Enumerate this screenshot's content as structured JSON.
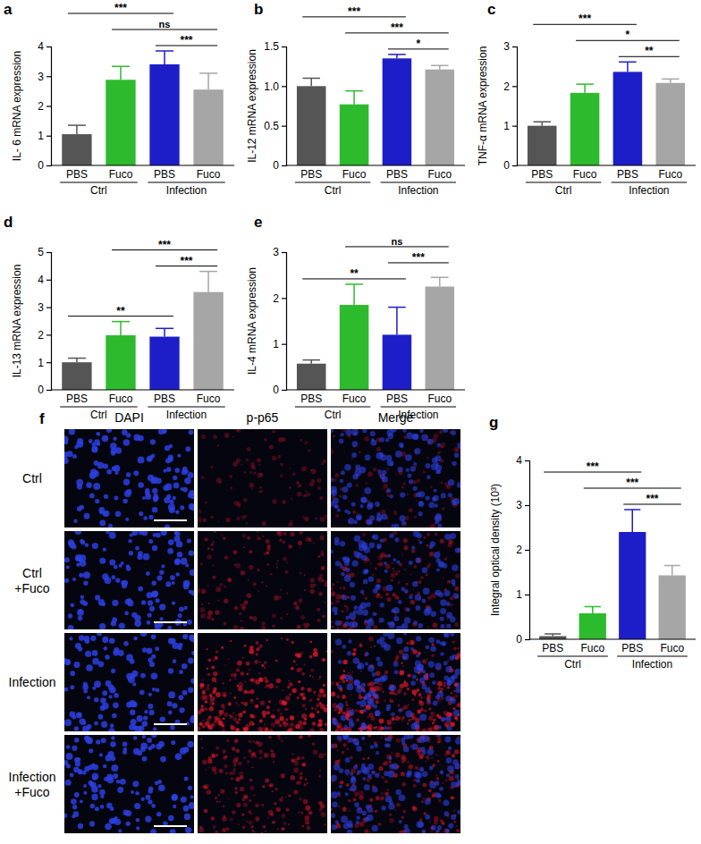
{
  "chart_data": [
    {
      "type": "bar",
      "panel_label": "a",
      "y_label": "IL- 6 mRNA expression",
      "categories": [
        "PBS",
        "Fuco",
        "PBS",
        "Fuco"
      ],
      "groups": [
        {
          "name": "Ctrl",
          "span": [
            0,
            1
          ]
        },
        {
          "name": "Infection",
          "span": [
            2,
            3
          ]
        }
      ],
      "values": [
        1.05,
        2.88,
        3.4,
        2.55
      ],
      "errors": [
        0.3,
        0.45,
        0.45,
        0.55
      ],
      "colors": [
        "#555555",
        "#2dbb2d",
        "#1e1ec8",
        "#a6a6a6"
      ],
      "ylim": [
        0,
        4
      ],
      "yticks": [
        0,
        1,
        2,
        3,
        4
      ],
      "annotations": [
        {
          "bars": [
            2,
            3
          ],
          "text": "***"
        },
        {
          "bars": [
            1,
            3
          ],
          "text": "ns"
        },
        {
          "bars": [
            0,
            2
          ],
          "text": "***"
        }
      ]
    },
    {
      "type": "bar",
      "panel_label": "b",
      "y_label": "IL-12 mRNA expression",
      "categories": [
        "PBS",
        "Fuco",
        "PBS",
        "Fuco"
      ],
      "groups": [
        {
          "name": "Ctrl",
          "span": [
            0,
            1
          ]
        },
        {
          "name": "Infection",
          "span": [
            2,
            3
          ]
        }
      ],
      "values": [
        1.0,
        0.77,
        1.35,
        1.21
      ],
      "errors": [
        0.1,
        0.17,
        0.05,
        0.05
      ],
      "colors": [
        "#555555",
        "#2dbb2d",
        "#1e1ec8",
        "#a6a6a6"
      ],
      "ylim": [
        0,
        1.5
      ],
      "yticks": [
        0,
        0.5,
        {
          "value": 1,
          "label": "1.0"
        },
        1.5
      ],
      "annotations": [
        {
          "bars": [
            2,
            3
          ],
          "text": "*"
        },
        {
          "bars": [
            1,
            3
          ],
          "text": "***"
        },
        {
          "bars": [
            0,
            2
          ],
          "text": "***"
        }
      ]
    },
    {
      "type": "bar",
      "panel_label": "c",
      "y_label": "TNF-α mRNA expression",
      "categories": [
        "PBS",
        "Fuco",
        "PBS",
        "Fuco"
      ],
      "groups": [
        {
          "name": "Ctrl",
          "span": [
            0,
            1
          ]
        },
        {
          "name": "Infection",
          "span": [
            2,
            3
          ]
        }
      ],
      "values": [
        1.0,
        1.83,
        2.36,
        2.08
      ],
      "errors": [
        0.1,
        0.22,
        0.25,
        0.1
      ],
      "colors": [
        "#555555",
        "#2dbb2d",
        "#1e1ec8",
        "#a6a6a6"
      ],
      "ylim": [
        0,
        3
      ],
      "yticks": [
        0,
        1,
        2,
        3
      ],
      "annotations": [
        {
          "bars": [
            2,
            3
          ],
          "text": "**"
        },
        {
          "bars": [
            1,
            3
          ],
          "text": "*"
        },
        {
          "bars": [
            0,
            2
          ],
          "text": "***"
        }
      ]
    },
    {
      "type": "bar",
      "panel_label": "d",
      "y_label": "IL-13 mRNA expression",
      "categories": [
        "PBS",
        "Fuco",
        "PBS",
        "Fuco"
      ],
      "groups": [
        {
          "name": "Ctrl",
          "span": [
            0,
            1
          ]
        },
        {
          "name": "Infection",
          "span": [
            2,
            3
          ]
        }
      ],
      "values": [
        1.0,
        1.98,
        1.93,
        3.55
      ],
      "errors": [
        0.15,
        0.5,
        0.3,
        0.75
      ],
      "colors": [
        "#555555",
        "#2dbb2d",
        "#1e1ec8",
        "#a6a6a6"
      ],
      "ylim": [
        0,
        5
      ],
      "yticks": [
        0,
        1,
        2,
        3,
        4,
        5
      ],
      "annotations": [
        {
          "bars": [
            0,
            2
          ],
          "text": "**"
        },
        {
          "bars": [
            2,
            3
          ],
          "text": "***"
        },
        {
          "bars": [
            1,
            3
          ],
          "text": "***"
        }
      ]
    },
    {
      "type": "bar",
      "panel_label": "e",
      "y_label": "IL-4 mRNA expression",
      "categories": [
        "PBS",
        "Fuco",
        "PBS",
        "Fuco"
      ],
      "groups": [
        {
          "name": "Ctrl",
          "span": [
            0,
            1
          ]
        },
        {
          "name": "Infection",
          "span": [
            2,
            3
          ]
        }
      ],
      "values": [
        0.57,
        1.85,
        1.2,
        2.25
      ],
      "errors": [
        0.08,
        0.45,
        0.6,
        0.2
      ],
      "colors": [
        "#555555",
        "#2dbb2d",
        "#1e1ec8",
        "#a6a6a6"
      ],
      "ylim": [
        0,
        3
      ],
      "yticks": [
        0,
        1,
        2,
        3
      ],
      "annotations": [
        {
          "bars": [
            0,
            2
          ],
          "text": "**"
        },
        {
          "bars": [
            2,
            3
          ],
          "text": "***"
        },
        {
          "bars": [
            1,
            3
          ],
          "text": "ns"
        }
      ]
    },
    {
      "type": "image",
      "panel_label": "f",
      "columns": [
        "DAPI",
        "p-p65",
        "Merge"
      ],
      "rows": [
        [
          "Ctrl"
        ],
        [
          "Ctrl",
          "+Fuco"
        ],
        [
          "Infection"
        ],
        [
          "Infection",
          "+Fuco"
        ]
      ]
    },
    {
      "type": "bar",
      "panel_label": "g",
      "y_label": "Integral optical density (10³)",
      "categories": [
        "PBS",
        "Fuco",
        "PBS",
        "Fuco"
      ],
      "groups": [
        {
          "name": "Ctrl",
          "span": [
            0,
            1
          ]
        },
        {
          "name": "Infection",
          "span": [
            2,
            3
          ]
        }
      ],
      "values": [
        0.07,
        0.58,
        2.4,
        1.43
      ],
      "errors": [
        0.05,
        0.15,
        0.5,
        0.22
      ],
      "colors": [
        "#555555",
        "#2dbb2d",
        "#1e1ec8",
        "#a6a6a6"
      ],
      "ylim": [
        0,
        4
      ],
      "yticks": [
        0,
        1,
        2,
        3,
        4
      ],
      "annotations": [
        {
          "bars": [
            2,
            3
          ],
          "text": "***"
        },
        {
          "bars": [
            1,
            3
          ],
          "text": "***"
        },
        {
          "bars": [
            0,
            2
          ],
          "text": "***"
        }
      ]
    }
  ]
}
